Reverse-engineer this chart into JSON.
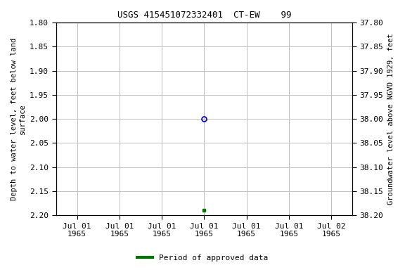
{
  "title": "USGS 415451072332401  CT-EW    99",
  "ylabel_left": "Depth to water level, feet below land\nsurface",
  "ylabel_right": "Groundwater level above NGVD 1929, feet",
  "ylim_left": [
    1.8,
    2.2
  ],
  "ylim_right": [
    38.2,
    37.8
  ],
  "yticks_left": [
    1.8,
    1.85,
    1.9,
    1.95,
    2.0,
    2.05,
    2.1,
    2.15,
    2.2
  ],
  "yticks_right": [
    38.2,
    38.15,
    38.1,
    38.05,
    38.0,
    37.95,
    37.9,
    37.85,
    37.8
  ],
  "yticks_right_labels": [
    "38.20",
    "38.15",
    "38.10",
    "38.05",
    "38.00",
    "37.95",
    "37.90",
    "37.85",
    "37.80"
  ],
  "x_ticks": [
    0,
    1,
    2,
    3,
    4,
    5,
    6
  ],
  "x_tick_labels": [
    "Jul 01\n1965",
    "Jul 01\n1965",
    "Jul 01\n1965",
    "Jul 01\n1965",
    "Jul 01\n1965",
    "Jul 01\n1965",
    "Jul 02\n1965"
  ],
  "xlim": [
    -0.5,
    6.5
  ],
  "data_point_x": 3.0,
  "data_point_y": 2.0,
  "data_point_color": "#0000cc",
  "green_point_x": 3.0,
  "green_point_y": 2.19,
  "green_point_color": "#007700",
  "grid_color": "#c0c0c0",
  "background_color": "#ffffff",
  "legend_label": "Period of approved data",
  "legend_color": "#007700",
  "title_fontsize": 9,
  "label_fontsize": 7.5,
  "tick_fontsize": 8
}
